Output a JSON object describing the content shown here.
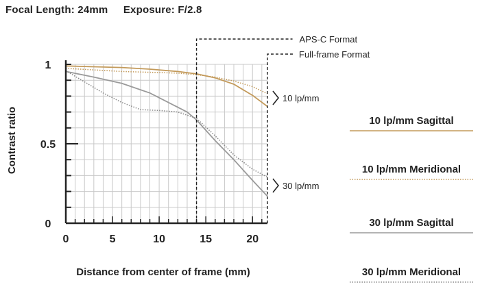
{
  "header": {
    "focal_length": "Focal Length: 24mm",
    "exposure": "Exposure: F/2.8"
  },
  "colors": {
    "sagittal_10": "#c39a5a",
    "meridional_10": "#c39a5a",
    "sagittal_30": "#9a9a9a",
    "meridional_30": "#8a8a8a",
    "grid": "#c8c8c8",
    "axis": "#222222"
  },
  "chart_data": {
    "type": "line",
    "title": "",
    "xlabel": "Distance from center of frame (mm)",
    "ylabel": "Contrast ratio",
    "xlim": [
      0,
      21.6
    ],
    "ylim": [
      0,
      1
    ],
    "x_ticks": [
      "0",
      "5",
      "10",
      "15",
      "20"
    ],
    "x_tick_values": [
      0,
      5,
      10,
      15,
      20
    ],
    "y_ticks": [
      "0",
      "0.5",
      "1"
    ],
    "y_tick_values": [
      0,
      0.5,
      1
    ],
    "grid": true,
    "annotations": {
      "apsc": {
        "label": "APS-C Format",
        "x": 14
      },
      "fullframe": {
        "label": "Full-frame Format",
        "x": 21.6
      },
      "group_10": "10 lp/mm",
      "group_30": "30 lp/mm"
    },
    "series": [
      {
        "name": "10 lp/mm Sagittal",
        "style": "solid",
        "color": "#c39a5a",
        "x": [
          0,
          3,
          6,
          9,
          12,
          14,
          16,
          18,
          20,
          21.6
        ],
        "y": [
          0.99,
          0.985,
          0.98,
          0.97,
          0.955,
          0.94,
          0.915,
          0.875,
          0.805,
          0.735
        ]
      },
      {
        "name": "10 lp/mm Meridional",
        "style": "dotted",
        "color": "#c39a5a",
        "x": [
          0,
          3,
          6,
          9,
          12,
          14,
          16,
          18,
          20,
          21.6
        ],
        "y": [
          0.975,
          0.965,
          0.955,
          0.95,
          0.945,
          0.935,
          0.92,
          0.895,
          0.86,
          0.815
        ]
      },
      {
        "name": "30 lp/mm Sagittal",
        "style": "solid",
        "color": "#9a9a9a",
        "x": [
          0,
          3,
          6,
          9,
          11,
          13,
          14,
          16,
          18,
          20,
          21.6
        ],
        "y": [
          0.955,
          0.92,
          0.88,
          0.82,
          0.76,
          0.7,
          0.65,
          0.52,
          0.4,
          0.27,
          0.17
        ]
      },
      {
        "name": "30 lp/mm Meridional",
        "style": "dotted",
        "color": "#8a8a8a",
        "x": [
          0,
          2,
          4,
          6,
          8,
          10,
          12,
          14,
          16,
          18,
          20,
          21.6
        ],
        "y": [
          0.96,
          0.89,
          0.82,
          0.76,
          0.715,
          0.71,
          0.7,
          0.66,
          0.55,
          0.43,
          0.34,
          0.29
        ]
      }
    ]
  }
}
